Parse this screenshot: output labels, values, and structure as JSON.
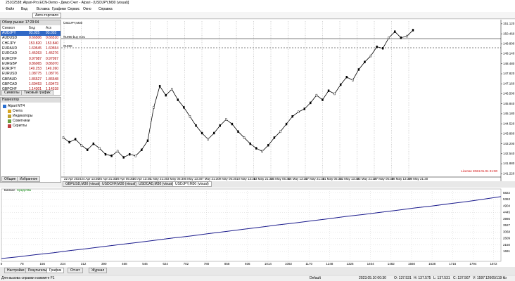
{
  "window": {
    "title": "25102538: Alpari-Pro.ECN-Demo - Демо Счет - Alpari - [USDJPY,M30 (visual)]"
  },
  "menu": [
    "Файл",
    "Вид",
    "Вставка",
    "Графики",
    "Сервис",
    "Окно",
    "Справка"
  ],
  "toolbar": {
    "autotrade": "Авто-торговля"
  },
  "market_watch": {
    "title": "Обзор рынка: 17:29:04",
    "columns": [
      "Символ",
      "Бид",
      "Аск"
    ],
    "rows": [
      [
        "AUDJPY",
        "93.025",
        "93.033"
      ],
      [
        "AUDUSD",
        "0.66506",
        "0.66510"
      ],
      [
        "CHFJPY",
        "153.820",
        "153.840"
      ],
      [
        "EURAUD",
        "1.60545",
        "1.60554"
      ],
      [
        "EURCAD",
        "1.45263",
        "1.45276"
      ],
      [
        "EURCHF",
        "0.97087",
        "0.97097"
      ],
      [
        "EURGBP",
        "0.86065",
        "0.86070"
      ],
      [
        "EURJPY",
        "149.253",
        "149.260"
      ],
      [
        "EURUSD",
        "1.08775",
        "1.08776"
      ],
      [
        "GBPAUD",
        "1.86527",
        "1.86548"
      ],
      [
        "GBPCAD",
        "1.69453",
        "1.69473"
      ],
      [
        "GBPCHF",
        "1.14301",
        "1.14318"
      ]
    ],
    "tabs": [
      "Символы",
      "Тиковый график"
    ]
  },
  "navigator": {
    "title": "Навигатор",
    "items": [
      "Alpari MT4",
      "Счета",
      "Индикаторы",
      "Советники",
      "Скрипты"
    ],
    "tabs": [
      "Общие",
      "Избранное"
    ]
  },
  "chart_tabs": [
    "GBPUSD,M30 (visual)",
    "USDCHF,M30 (visual)",
    "USDCAD,M30 (visual)",
    "USDJPY,M30 (visual)"
  ],
  "chart_data": [
    {
      "type": "line",
      "title": "USDJPY,M30",
      "annotations": [
        "#1990 buy 0.01",
        "#1990"
      ],
      "license": "License 2024.01.01 21:00",
      "color": "#000000",
      "x_labels": [
        "22 Apr 2024",
        "24 Apr 13:30",
        "25 Apr 21:30",
        "29 Apr 05:30",
        "30 Apr 13:30",
        "1 May 21:30",
        "3 May 05:30",
        "6 May 13:30",
        "7 May 21:30",
        "9 May 05:30",
        "10 May 13:30",
        "13 May 21:30",
        "15 May 05:30",
        "16 May 13:30",
        "17 May 21:30",
        "21 May 05:30",
        "22 May 13:30",
        "23 May 21:30",
        "27 May 05:30",
        "28 May 13:30",
        "29 May 21:30"
      ],
      "values": [
        143.6,
        143.3,
        143.5,
        143.1,
        142.8,
        143.2,
        142.9,
        142.5,
        142.4,
        142.7,
        142.3,
        142.5,
        142.4,
        142.8,
        143.4,
        145.6,
        147.0,
        146.4,
        146.8,
        146.1,
        145.6,
        145.0,
        144.4,
        143.9,
        143.5,
        143.9,
        144.4,
        144.8,
        144.5,
        144.0,
        143.6,
        143.2,
        142.9,
        142.7,
        143.1,
        143.6,
        144.0,
        144.5,
        145.0,
        145.3,
        145.5,
        145.9,
        146.4,
        146.1,
        146.7,
        146.5,
        147.1,
        147.6,
        147.4,
        148.1,
        148.6,
        149.0,
        149.6,
        149.5,
        150.2,
        150.6,
        150.2,
        150.3,
        150.7
      ],
      "ylim": [
        141.0,
        151.3
      ],
      "yticks": [
        {
          "value": 151.12,
          "label": "151.120"
        },
        {
          "value": 150.46,
          "label": "150.460"
        },
        {
          "value": 149.8,
          "label": "149.800"
        },
        {
          "value": 149.14,
          "label": "149.140"
        },
        {
          "value": 148.48,
          "label": "148.480"
        },
        {
          "value": 147.82,
          "label": "147.820"
        },
        {
          "value": 147.16,
          "label": "147.160"
        },
        {
          "value": 146.5,
          "label": "146.500"
        },
        {
          "value": 145.84,
          "label": "145.840"
        },
        {
          "value": 145.18,
          "label": "145.180"
        },
        {
          "value": 144.52,
          "label": "144.520"
        },
        {
          "value": 143.86,
          "label": "143.860"
        },
        {
          "value": 143.2,
          "label": "143.200"
        },
        {
          "value": 142.54,
          "label": "142.540"
        },
        {
          "value": 141.88,
          "label": "141.880"
        },
        {
          "value": 141.22,
          "label": "141.220"
        }
      ]
    },
    {
      "type": "line",
      "series": [
        {
          "name": "Баланс",
          "color": "#1a1a8c",
          "values": [
            1200,
            1320,
            1470,
            1600,
            1760,
            1900,
            2050,
            2200,
            2340,
            2500,
            2650,
            2790,
            2950,
            3100,
            3250,
            3400,
            3560,
            3700,
            3850,
            4000,
            4160,
            4300,
            4450,
            4600,
            4760,
            4900,
            5060,
            5210,
            5380,
            5560
          ]
        }
      ],
      "equity_label": "Средства",
      "equity_color": "#008000",
      "xlim": [
        0,
        1900
      ],
      "xticks": [
        0,
        78,
        156,
        234,
        312,
        390,
        468,
        546,
        624,
        702,
        780,
        858,
        936,
        1014,
        1092,
        1170,
        1248,
        1326,
        1404,
        1482,
        1560,
        1638,
        1716,
        1794,
        1872
      ],
      "ylim": [
        1000,
        5950
      ],
      "yticks": [
        5822,
        5363,
        4904,
        4445,
        3986,
        3527,
        3068,
        2609,
        2150,
        1691
      ]
    }
  ],
  "tester_tabs": [
    "Настройки",
    "Результаты",
    "График",
    "Отчет",
    "Журнал"
  ],
  "status_bar": [
    "Для вызова справки нажмите F1",
    "Default",
    "2023.05.10 00:30",
    "O: 137.531",
    "H: 137.575",
    "L: 137.531",
    "C: 137.567",
    "V: 1597",
    "12605/119 kb"
  ]
}
